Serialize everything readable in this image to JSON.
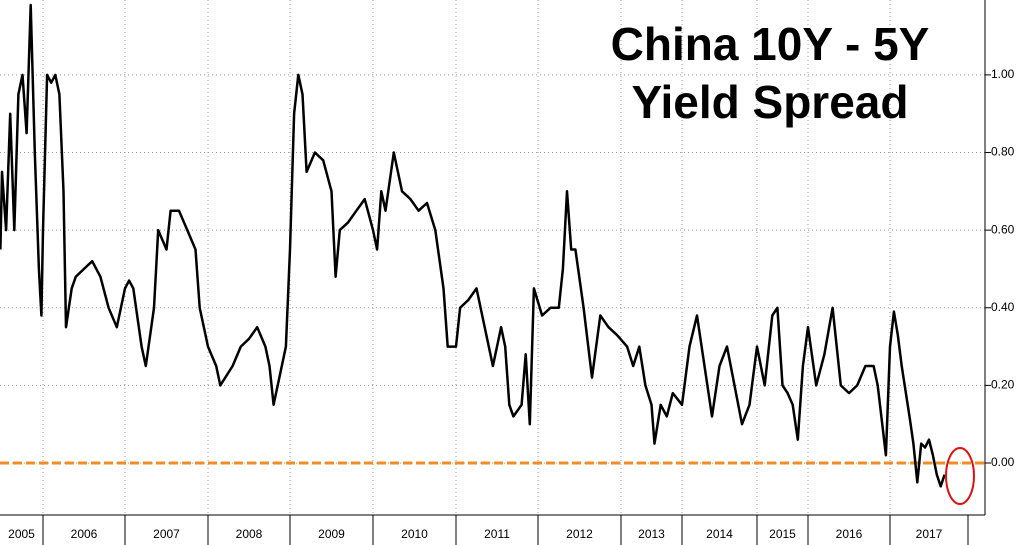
{
  "chart_data": {
    "type": "line",
    "title": [
      "China 10Y - 5Y",
      "Yield Spread"
    ],
    "color": "#000000",
    "x": [
      2005.48,
      2005.5,
      2005.55,
      2005.6,
      2005.65,
      2005.7,
      2005.75,
      2005.8,
      2005.85,
      2005.9,
      2005.95,
      2005.98,
      2006.0,
      2006.05,
      2006.1,
      2006.15,
      2006.2,
      2006.25,
      2006.28,
      2006.35,
      2006.4,
      2006.5,
      2006.6,
      2006.7,
      2006.8,
      2006.9,
      2007.0,
      2007.05,
      2007.1,
      2007.2,
      2007.25,
      2007.35,
      2007.4,
      2007.5,
      2007.55,
      2007.65,
      2007.75,
      2007.85,
      2007.9,
      2008.0,
      2008.1,
      2008.15,
      2008.3,
      2008.4,
      2008.5,
      2008.6,
      2008.7,
      2008.75,
      2008.8,
      2008.9,
      2008.95,
      2009.0,
      2009.05,
      2009.1,
      2009.15,
      2009.2,
      2009.3,
      2009.4,
      2009.5,
      2009.55,
      2009.6,
      2009.7,
      2009.8,
      2009.9,
      2010.0,
      2010.05,
      2010.1,
      2010.15,
      2010.25,
      2010.35,
      2010.45,
      2010.55,
      2010.65,
      2010.75,
      2010.85,
      2010.9,
      2011.0,
      2011.05,
      2011.15,
      2011.25,
      2011.35,
      2011.45,
      2011.55,
      2011.6,
      2011.65,
      2011.7,
      2011.8,
      2011.85,
      2011.9,
      2011.95,
      2012.05,
      2012.15,
      2012.25,
      2012.3,
      2012.35,
      2012.4,
      2012.45,
      2012.55,
      2012.65,
      2012.75,
      2012.85,
      2012.95,
      2013.1,
      2013.2,
      2013.3,
      2013.4,
      2013.5,
      2013.55,
      2013.65,
      2013.75,
      2013.85,
      2014.0,
      2014.1,
      2014.2,
      2014.3,
      2014.4,
      2014.5,
      2014.6,
      2014.7,
      2014.8,
      2014.9,
      2015.0,
      2015.15,
      2015.3,
      2015.4,
      2015.5,
      2015.6,
      2015.7,
      2015.8,
      2015.9,
      2016.0,
      2016.1,
      2016.2,
      2016.3,
      2016.4,
      2016.5,
      2016.6,
      2016.7,
      2016.8,
      2016.85,
      2016.95,
      2017.0,
      2017.05,
      2017.1,
      2017.15,
      2017.25,
      2017.3,
      2017.35,
      2017.4,
      2017.45,
      2017.5,
      2017.55,
      2017.6,
      2017.65,
      2017.7
    ],
    "values": [
      0.55,
      0.75,
      0.6,
      0.9,
      0.6,
      0.95,
      1.0,
      0.85,
      1.18,
      0.8,
      0.5,
      0.38,
      0.6,
      1.0,
      0.98,
      1.0,
      0.95,
      0.7,
      0.35,
      0.45,
      0.48,
      0.5,
      0.52,
      0.48,
      0.4,
      0.35,
      0.45,
      0.47,
      0.45,
      0.3,
      0.25,
      0.4,
      0.6,
      0.55,
      0.65,
      0.65,
      0.6,
      0.55,
      0.4,
      0.3,
      0.25,
      0.2,
      0.25,
      0.3,
      0.32,
      0.35,
      0.3,
      0.25,
      0.15,
      0.25,
      0.3,
      0.55,
      0.9,
      1.0,
      0.95,
      0.75,
      0.8,
      0.78,
      0.7,
      0.48,
      0.6,
      0.62,
      0.65,
      0.68,
      0.6,
      0.55,
      0.7,
      0.65,
      0.8,
      0.7,
      0.68,
      0.65,
      0.67,
      0.6,
      0.45,
      0.3,
      0.3,
      0.4,
      0.42,
      0.45,
      0.35,
      0.25,
      0.35,
      0.3,
      0.15,
      0.12,
      0.15,
      0.28,
      0.1,
      0.45,
      0.38,
      0.4,
      0.4,
      0.5,
      0.7,
      0.55,
      0.55,
      0.4,
      0.22,
      0.38,
      0.35,
      0.33,
      0.3,
      0.25,
      0.3,
      0.2,
      0.15,
      0.05,
      0.15,
      0.12,
      0.18,
      0.15,
      0.3,
      0.38,
      0.25,
      0.12,
      0.25,
      0.3,
      0.2,
      0.1,
      0.15,
      0.3,
      0.2,
      0.38,
      0.4,
      0.2,
      0.18,
      0.15,
      0.06,
      0.25,
      0.35,
      0.2,
      0.28,
      0.4,
      0.2,
      0.18,
      0.2,
      0.25,
      0.25,
      0.2,
      0.02,
      0.3,
      0.39,
      0.33,
      0.25,
      0.12,
      0.05,
      -0.05,
      0.05,
      0.04,
      0.06,
      0.02,
      -0.03,
      -0.06,
      -0.03
    ],
    "xlim": [
      2005.48,
      2018.15
    ],
    "xticks": [
      {
        "value": 2005,
        "label": "2005"
      },
      {
        "value": 2006,
        "label": "2006"
      },
      {
        "value": 2007,
        "label": "2007"
      },
      {
        "value": 2008,
        "label": "2008"
      },
      {
        "value": 2009,
        "label": "2009"
      },
      {
        "value": 2010,
        "label": "2010"
      },
      {
        "value": 2011,
        "label": "2011"
      },
      {
        "value": 2012,
        "label": "2012"
      },
      {
        "value": 2013,
        "label": "2013"
      },
      {
        "value": 2014,
        "label": "2014"
      },
      {
        "value": 2015,
        "label": "2015"
      },
      {
        "value": 2016,
        "label": "2016"
      },
      {
        "value": 2017,
        "label": "2017"
      }
    ],
    "ylim": [
      -0.134,
      1.193
    ],
    "yticks": [
      {
        "value": 0,
        "label": "0.00"
      },
      {
        "value": 0.2,
        "label": "0.20"
      },
      {
        "value": 0.4,
        "label": "0.40"
      },
      {
        "value": 0.6,
        "label": "0.60"
      },
      {
        "value": 0.8,
        "label": "0.80"
      },
      {
        "value": 1.0,
        "label": "1.00"
      }
    ],
    "grid": true,
    "reference_line": {
      "value": 0,
      "color": "#f28c28"
    }
  }
}
